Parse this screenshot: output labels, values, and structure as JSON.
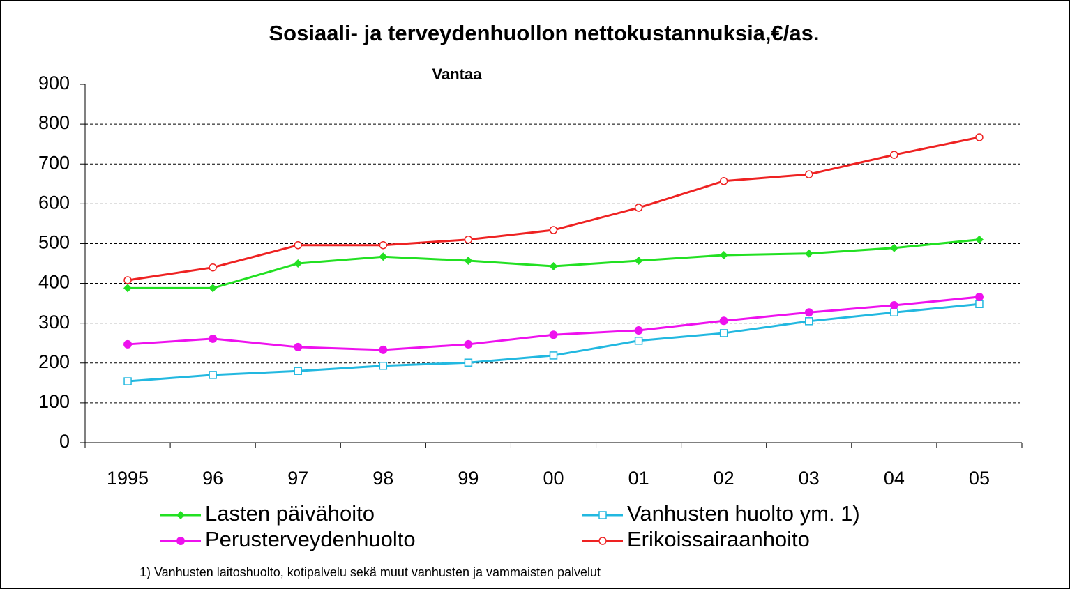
{
  "chart_data": {
    "type": "line",
    "title": "Sosiaali- ja terveydenhuollon nettokustannuksia,€/as.",
    "subtitle": "Vantaa",
    "footnote": "1) Vanhusten laitoshuolto, kotipalvelu sekä muut vanhusten ja vammaisten palvelut",
    "categories": [
      "1995",
      "96",
      "97",
      "98",
      "99",
      "00",
      "01",
      "02",
      "03",
      "04",
      "05"
    ],
    "ylim": [
      0,
      900
    ],
    "yticks": [
      0,
      100,
      200,
      300,
      400,
      500,
      600,
      700,
      800,
      900
    ],
    "grid": true,
    "series": [
      {
        "name": "Lasten päivähoito",
        "color": "#22e022",
        "marker": "diamond",
        "values": [
          388,
          388,
          450,
          467,
          457,
          443,
          457,
          471,
          475,
          489,
          510
        ]
      },
      {
        "name": "Vanhusten huolto ym. 1)",
        "color": "#22b8e0",
        "marker": "open-square",
        "values": [
          154,
          170,
          180,
          193,
          201,
          219,
          256,
          275,
          305,
          327,
          348
        ]
      },
      {
        "name": "Perusterveydenhuolto",
        "color": "#ee11ee",
        "marker": "circle",
        "values": [
          247,
          261,
          240,
          233,
          247,
          271,
          282,
          306,
          327,
          345,
          366
        ]
      },
      {
        "name": "Erikoissairaanhoito",
        "color": "#ee2222",
        "marker": "open-circle",
        "values": [
          408,
          440,
          496,
          496,
          510,
          534,
          590,
          657,
          674,
          723,
          767
        ]
      }
    ]
  }
}
